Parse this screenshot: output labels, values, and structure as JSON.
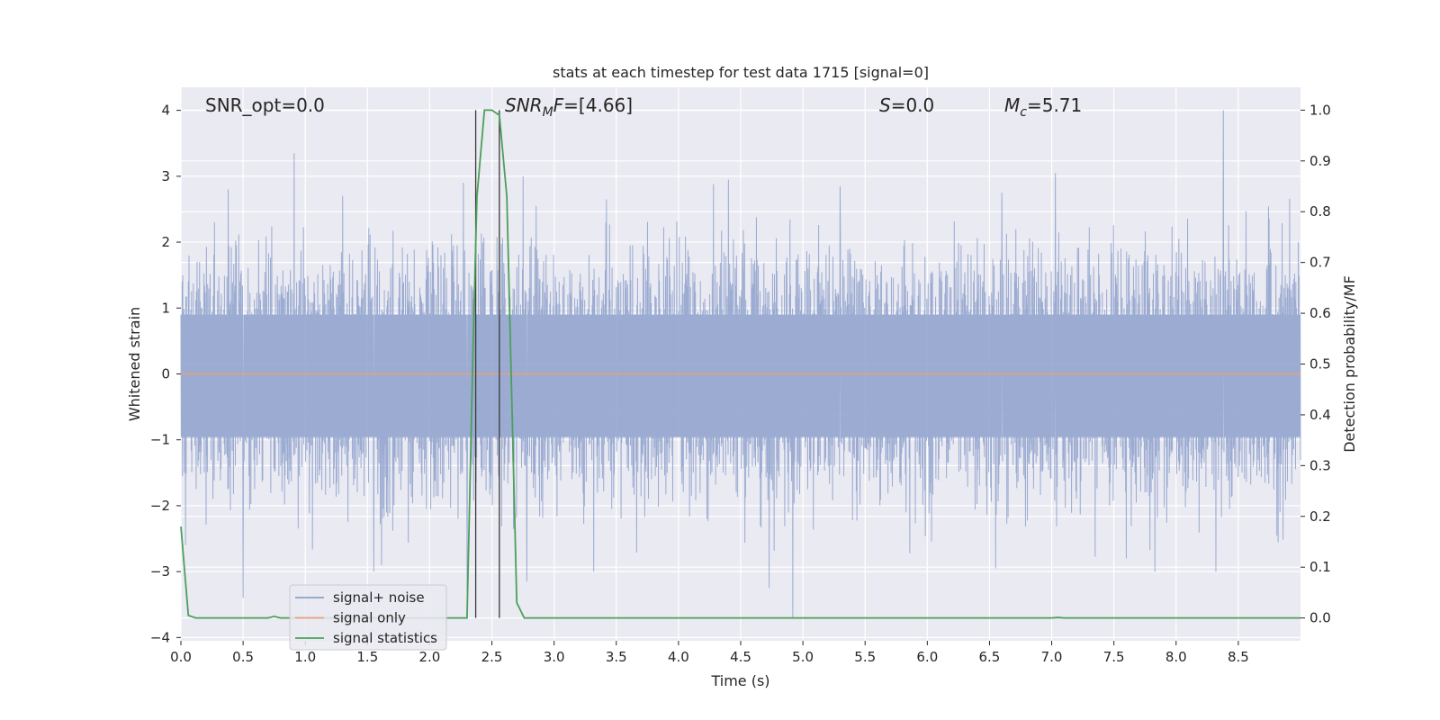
{
  "chart_data": {
    "type": "line",
    "title": "stats at each timestep for test data 1715 [signal=0]",
    "xlabel": "Time (s)",
    "ylabel_left": "Whitened strain",
    "ylabel_right": "Detection probability/MF",
    "xlim": [
      0.0,
      9.0
    ],
    "ylim_left": [
      -4.05,
      4.35
    ],
    "ylim_right": [
      -0.045,
      1.045
    ],
    "xticks": [
      0.0,
      0.5,
      1.0,
      1.5,
      2.0,
      2.5,
      3.0,
      3.5,
      4.0,
      4.5,
      5.0,
      5.5,
      6.0,
      6.5,
      7.0,
      7.5,
      8.0,
      8.5
    ],
    "xtick_labels": [
      "0.0",
      "0.5",
      "1.0",
      "1.5",
      "2.0",
      "2.5",
      "3.0",
      "3.5",
      "4.0",
      "4.5",
      "5.0",
      "5.5",
      "6.0",
      "6.5",
      "7.0",
      "7.5",
      "8.0",
      "8.5"
    ],
    "yticks_left": [
      4,
      3,
      2,
      1,
      0,
      -1,
      -2,
      -3,
      -4
    ],
    "ytick_labels_left": [
      "4",
      "3",
      "2",
      "1",
      "0",
      "−1",
      "−2",
      "−3",
      "−4"
    ],
    "yticks_right": [
      1.0,
      0.9,
      0.8,
      0.7,
      0.6,
      0.5,
      0.4,
      0.3,
      0.2,
      0.1,
      0.0
    ],
    "ytick_labels_right": [
      "1.0",
      "0.9",
      "0.8",
      "0.7",
      "0.6",
      "0.5",
      "0.4",
      "0.3",
      "0.2",
      "0.1",
      "0.0"
    ],
    "grid": true,
    "legend_position": "lower-left",
    "annotations": [
      {
        "text": "SNR_opt=0.0"
      },
      {
        "text": "SNR_MF=[4.66]"
      },
      {
        "text": "S=0.0"
      },
      {
        "text": "M_c=5.71"
      }
    ],
    "vertical_markers": [
      2.37,
      2.56
    ],
    "series": [
      {
        "name": "signal+ noise",
        "color": "#8da0cb",
        "axis": "left",
        "description_stats": {
          "typical_range": [
            -1.6,
            1.5
          ],
          "max": 4.0,
          "min": -3.7
        },
        "notable_peaks": [
          {
            "x": 0.06,
            "y": 1.4
          },
          {
            "x": 0.27,
            "y": 2.3
          },
          {
            "x": 0.38,
            "y": 2.8
          },
          {
            "x": 0.91,
            "y": 3.35
          },
          {
            "x": 1.3,
            "y": 2.7
          },
          {
            "x": 2.27,
            "y": 2.9
          },
          {
            "x": 2.75,
            "y": 3.0
          },
          {
            "x": 3.42,
            "y": 2.65
          },
          {
            "x": 4.4,
            "y": 2.95
          },
          {
            "x": 5.3,
            "y": 2.85
          },
          {
            "x": 6.6,
            "y": 2.75
          },
          {
            "x": 7.03,
            "y": 3.05
          },
          {
            "x": 8.38,
            "y": 4.0
          }
        ],
        "notable_troughs": [
          {
            "x": 0.5,
            "y": -3.4
          },
          {
            "x": 1.55,
            "y": -3.0
          },
          {
            "x": 2.3,
            "y": -3.3
          },
          {
            "x": 2.78,
            "y": -3.15
          },
          {
            "x": 4.73,
            "y": -3.25
          },
          {
            "x": 4.92,
            "y": -3.7
          },
          {
            "x": 6.55,
            "y": -2.95
          },
          {
            "x": 7.6,
            "y": -2.8
          },
          {
            "x": 8.32,
            "y": -3.0
          }
        ]
      },
      {
        "name": "signal only",
        "color": "#e5a07e",
        "axis": "left",
        "x": [
          0.0,
          9.0
        ],
        "y": [
          0.0,
          0.0
        ]
      },
      {
        "name": "signal statistics",
        "color": "#4c9f5a",
        "axis": "right",
        "x": [
          0.0,
          0.06,
          0.12,
          0.2,
          0.4,
          0.6,
          0.7,
          0.75,
          0.8,
          0.9,
          1.0,
          1.5,
          2.0,
          2.25,
          2.3,
          2.35,
          2.38,
          2.44,
          2.5,
          2.56,
          2.62,
          2.7,
          2.76,
          2.9,
          3.5,
          5.0,
          6.5,
          7.0,
          7.05,
          7.1,
          8.0,
          9.0
        ],
        "y": [
          0.18,
          0.005,
          0.0,
          0.0,
          0.0,
          0.0,
          0.0,
          0.003,
          0.0,
          0.0,
          0.0,
          0.0,
          0.0,
          0.0,
          0.0,
          0.55,
          0.83,
          1.0,
          1.0,
          0.99,
          0.83,
          0.03,
          0.0,
          0.0,
          0.0,
          0.0,
          0.0,
          0.0,
          0.001,
          0.0,
          0.0,
          0.0
        ]
      }
    ]
  }
}
